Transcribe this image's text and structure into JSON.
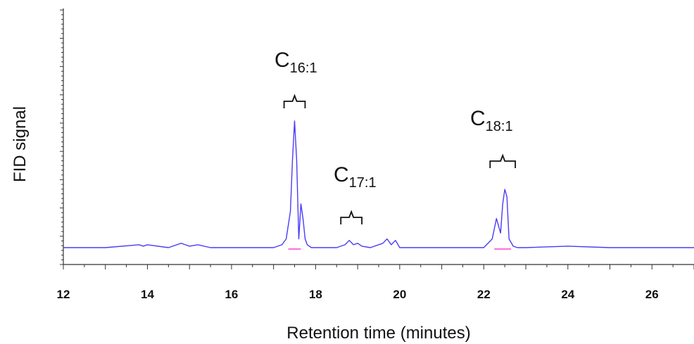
{
  "chart_data": {
    "type": "line",
    "xlabel": "Retention time (minutes)",
    "ylabel": "FID signal",
    "xlim": [
      12,
      27
    ],
    "ylim": [
      0,
      1
    ],
    "x_ticks": [
      12,
      14,
      16,
      18,
      20,
      22,
      24,
      26
    ],
    "x_tick_labels": [
      "12",
      "14",
      "16",
      "18",
      "20",
      "22",
      "24",
      "26"
    ],
    "line_color": "#4a3cf5",
    "baseline_color": "#ff40c8",
    "series": [
      {
        "x": [
          12.0,
          13.0,
          13.8,
          13.9,
          14.0,
          14.5,
          14.8,
          14.9,
          15.0,
          15.2,
          15.5,
          16.0,
          16.5,
          17.0,
          17.2,
          17.3,
          17.4,
          17.45,
          17.5,
          17.55,
          17.6,
          17.65,
          17.7,
          17.75,
          17.8,
          17.9,
          18.0,
          18.5,
          18.7,
          18.8,
          18.9,
          19.0,
          19.1,
          19.3,
          19.6,
          19.7,
          19.8,
          19.9,
          20.0,
          20.5,
          21.0,
          21.5,
          22.0,
          22.2,
          22.3,
          22.4,
          22.45,
          22.5,
          22.55,
          22.6,
          22.7,
          22.8,
          23.0,
          24.0,
          25.0,
          26.0,
          27.0
        ],
        "y": [
          0.0,
          0.0,
          0.02,
          0.01,
          0.02,
          0.0,
          0.03,
          0.02,
          0.01,
          0.02,
          0.0,
          0.0,
          0.0,
          0.0,
          0.02,
          0.06,
          0.25,
          0.6,
          0.87,
          0.6,
          0.06,
          0.3,
          0.2,
          0.06,
          0.02,
          0.0,
          0.0,
          0.0,
          0.02,
          0.05,
          0.02,
          0.03,
          0.01,
          0.0,
          0.03,
          0.06,
          0.02,
          0.05,
          0.0,
          0.0,
          0.0,
          0.0,
          0.0,
          0.06,
          0.2,
          0.1,
          0.3,
          0.4,
          0.35,
          0.06,
          0.01,
          0.0,
          0.0,
          0.01,
          0.0,
          0.0,
          0.0
        ]
      }
    ],
    "annotations": [
      {
        "main": "C",
        "sub": "16:1",
        "bracket_x": [
          17.25,
          17.75
        ]
      },
      {
        "main": "C",
        "sub": "17:1",
        "bracket_x": [
          18.6,
          19.1
        ]
      },
      {
        "main": "C",
        "sub": "18:1",
        "bracket_x": [
          22.15,
          22.75
        ]
      }
    ]
  }
}
